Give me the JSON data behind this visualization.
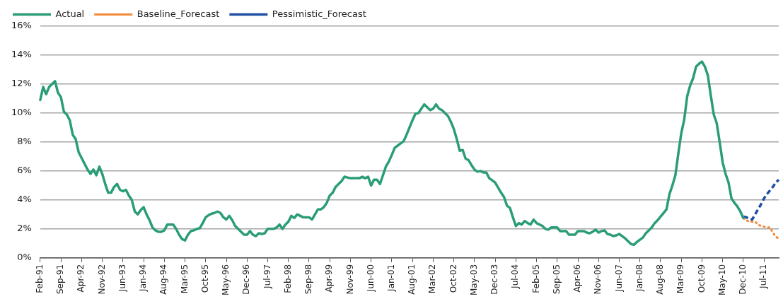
{
  "chart_data": {
    "type": "line",
    "categories": [
      "Feb-91",
      null,
      null,
      null,
      null,
      null,
      null,
      "Sep-91",
      null,
      null,
      null,
      null,
      null,
      null,
      "Apr-92",
      null,
      null,
      null,
      null,
      null,
      null,
      "Nov-92",
      null,
      null,
      null,
      null,
      null,
      null,
      "Jun-93",
      null,
      null,
      null,
      null,
      null,
      null,
      "Jan-94",
      null,
      null,
      null,
      null,
      null,
      null,
      "Aug-94",
      null,
      null,
      null,
      null,
      null,
      null,
      "Mar-95",
      null,
      null,
      null,
      null,
      null,
      null,
      "Oct-95",
      null,
      null,
      null,
      null,
      null,
      null,
      "May-96",
      null,
      null,
      null,
      null,
      null,
      null,
      "Dec-96",
      null,
      null,
      null,
      null,
      null,
      null,
      "Jul-97",
      null,
      null,
      null,
      null,
      null,
      null,
      "Feb-98",
      null,
      null,
      null,
      null,
      null,
      null,
      "Sep-98",
      null,
      null,
      null,
      null,
      null,
      null,
      "Apr-99",
      null,
      null,
      null,
      null,
      null,
      null,
      "Nov-99",
      null,
      null,
      null,
      null,
      null,
      null,
      "Jun-00",
      null,
      null,
      null,
      null,
      null,
      null,
      "Jan-01",
      null,
      null,
      null,
      null,
      null,
      null,
      "Aug-01",
      null,
      null,
      null,
      null,
      null,
      null,
      "Mar-02",
      null,
      null,
      null,
      null,
      null,
      null,
      "Oct-02",
      null,
      null,
      null,
      null,
      null,
      null,
      "May-03",
      null,
      null,
      null,
      null,
      null,
      null,
      "Dec-03",
      null,
      null,
      null,
      null,
      null,
      null,
      "Jul-04",
      null,
      null,
      null,
      null,
      null,
      null,
      "Feb-05",
      null,
      null,
      null,
      null,
      null,
      null,
      "Sep-05",
      null,
      null,
      null,
      null,
      null,
      null,
      "Apr-06",
      null,
      null,
      null,
      null,
      null,
      null,
      "Nov-06",
      null,
      null,
      null,
      null,
      null,
      null,
      "Jun-07",
      null,
      null,
      null,
      null,
      null,
      null,
      "Jan-08",
      null,
      null,
      null,
      null,
      null,
      null,
      "Aug-08",
      null,
      null,
      null,
      null,
      null,
      null,
      "Mar-09",
      null,
      null,
      null,
      null,
      null,
      null,
      "Oct-09",
      null,
      null,
      null,
      null,
      null,
      null,
      "May-10",
      null,
      null,
      null,
      null,
      null,
      null,
      "Dec-10",
      null,
      null,
      null,
      null,
      null,
      null,
      "Jul-11",
      null,
      null,
      null,
      null,
      null
    ],
    "series": [
      {
        "name": "Actual",
        "color": "#2a9d78",
        "line_style": "solid",
        "values": [
          10.9,
          11.8,
          11.3,
          11.8,
          12.0,
          12.2,
          11.4,
          11.1,
          10.1,
          9.9,
          9.5,
          8.5,
          8.2,
          7.3,
          6.9,
          6.5,
          6.1,
          5.8,
          6.1,
          5.7,
          6.3,
          5.8,
          5.1,
          4.5,
          4.5,
          4.9,
          5.1,
          4.7,
          4.6,
          4.7,
          4.3,
          4.0,
          3.2,
          3.0,
          3.3,
          3.5,
          3.0,
          2.6,
          2.1,
          1.9,
          1.8,
          1.8,
          1.9,
          2.3,
          2.3,
          2.3,
          2.0,
          1.6,
          1.3,
          1.2,
          1.6,
          1.85,
          1.9,
          2.0,
          2.05,
          2.4,
          2.8,
          2.95,
          3.05,
          3.1,
          3.2,
          3.1,
          2.8,
          2.65,
          2.9,
          2.6,
          2.2,
          2.0,
          1.8,
          1.6,
          1.6,
          1.85,
          1.6,
          1.5,
          1.7,
          1.65,
          1.7,
          2.0,
          2.0,
          2.0,
          2.1,
          2.3,
          2.0,
          2.3,
          2.5,
          2.9,
          2.75,
          3.0,
          2.9,
          2.8,
          2.8,
          2.8,
          2.65,
          3.0,
          3.35,
          3.35,
          3.5,
          3.8,
          4.3,
          4.5,
          4.9,
          5.1,
          5.3,
          5.6,
          5.55,
          5.5,
          5.5,
          5.5,
          5.5,
          5.6,
          5.5,
          5.6,
          5.0,
          5.4,
          5.4,
          5.1,
          5.7,
          6.3,
          6.65,
          7.1,
          7.6,
          7.75,
          7.9,
          8.05,
          8.5,
          9.0,
          9.5,
          9.95,
          10.0,
          10.3,
          10.6,
          10.4,
          10.2,
          10.3,
          10.6,
          10.3,
          10.2,
          10.0,
          9.8,
          9.4,
          8.9,
          8.2,
          7.4,
          7.45,
          6.85,
          6.75,
          6.4,
          6.1,
          5.95,
          6.0,
          5.9,
          5.9,
          5.5,
          5.35,
          5.2,
          4.85,
          4.5,
          4.2,
          3.6,
          3.45,
          2.8,
          2.2,
          2.4,
          2.3,
          2.55,
          2.4,
          2.3,
          2.65,
          2.4,
          2.3,
          2.2,
          2.0,
          1.95,
          2.1,
          2.1,
          2.1,
          1.85,
          1.85,
          1.85,
          1.6,
          1.6,
          1.6,
          1.85,
          1.85,
          1.85,
          1.75,
          1.7,
          1.8,
          1.95,
          1.75,
          1.85,
          1.9,
          1.65,
          1.6,
          1.5,
          1.55,
          1.65,
          1.5,
          1.35,
          1.15,
          0.95,
          0.9,
          1.1,
          1.25,
          1.4,
          1.7,
          1.9,
          2.1,
          2.4,
          2.6,
          2.85,
          3.1,
          3.35,
          4.4,
          5.0,
          5.7,
          7.2,
          8.6,
          9.55,
          11.15,
          11.9,
          12.4,
          13.2,
          13.4,
          13.55,
          13.2,
          12.6,
          11.2,
          9.9,
          9.3,
          8.0,
          6.6,
          5.8,
          5.2,
          4.1,
          3.8,
          3.55,
          3.2,
          2.75,
          null,
          null,
          null,
          null,
          null,
          null,
          null,
          null,
          null,
          null,
          null,
          null
        ]
      },
      {
        "name": "Baseline_Forecast",
        "color": "#f4893a",
        "line_style": "dotted",
        "values": [
          null,
          null,
          null,
          null,
          null,
          null,
          null,
          null,
          null,
          null,
          null,
          null,
          null,
          null,
          null,
          null,
          null,
          null,
          null,
          null,
          null,
          null,
          null,
          null,
          null,
          null,
          null,
          null,
          null,
          null,
          null,
          null,
          null,
          null,
          null,
          null,
          null,
          null,
          null,
          null,
          null,
          null,
          null,
          null,
          null,
          null,
          null,
          null,
          null,
          null,
          null,
          null,
          null,
          null,
          null,
          null,
          null,
          null,
          null,
          null,
          null,
          null,
          null,
          null,
          null,
          null,
          null,
          null,
          null,
          null,
          null,
          null,
          null,
          null,
          null,
          null,
          null,
          null,
          null,
          null,
          null,
          null,
          null,
          null,
          null,
          null,
          null,
          null,
          null,
          null,
          null,
          null,
          null,
          null,
          null,
          null,
          null,
          null,
          null,
          null,
          null,
          null,
          null,
          null,
          null,
          null,
          null,
          null,
          null,
          null,
          null,
          null,
          null,
          null,
          null,
          null,
          null,
          null,
          null,
          null,
          null,
          null,
          null,
          null,
          null,
          null,
          null,
          null,
          null,
          null,
          null,
          null,
          null,
          null,
          null,
          null,
          null,
          null,
          null,
          null,
          null,
          null,
          null,
          null,
          null,
          null,
          null,
          null,
          null,
          null,
          null,
          null,
          null,
          null,
          null,
          null,
          null,
          null,
          null,
          null,
          null,
          null,
          null,
          null,
          null,
          null,
          null,
          null,
          null,
          null,
          null,
          null,
          null,
          null,
          null,
          null,
          null,
          null,
          null,
          null,
          null,
          null,
          null,
          null,
          null,
          null,
          null,
          null,
          null,
          null,
          null,
          null,
          null,
          null,
          null,
          null,
          null,
          null,
          null,
          null,
          null,
          null,
          null,
          null,
          null,
          null,
          null,
          null,
          null,
          null,
          null,
          null,
          null,
          null,
          null,
          null,
          null,
          null,
          null,
          null,
          null,
          null,
          null,
          null,
          null,
          null,
          null,
          null,
          null,
          null,
          null,
          null,
          null,
          null,
          null,
          null,
          null,
          null,
          2.75,
          2.6,
          2.5,
          2.5,
          2.5,
          2.3,
          2.2,
          2.15,
          2.1,
          2.1,
          1.75,
          1.45,
          1.35
        ]
      },
      {
        "name": "Pessimistic_Forecast",
        "color": "#1f4ea3",
        "line_style": "dashed",
        "values": [
          null,
          null,
          null,
          null,
          null,
          null,
          null,
          null,
          null,
          null,
          null,
          null,
          null,
          null,
          null,
          null,
          null,
          null,
          null,
          null,
          null,
          null,
          null,
          null,
          null,
          null,
          null,
          null,
          null,
          null,
          null,
          null,
          null,
          null,
          null,
          null,
          null,
          null,
          null,
          null,
          null,
          null,
          null,
          null,
          null,
          null,
          null,
          null,
          null,
          null,
          null,
          null,
          null,
          null,
          null,
          null,
          null,
          null,
          null,
          null,
          null,
          null,
          null,
          null,
          null,
          null,
          null,
          null,
          null,
          null,
          null,
          null,
          null,
          null,
          null,
          null,
          null,
          null,
          null,
          null,
          null,
          null,
          null,
          null,
          null,
          null,
          null,
          null,
          null,
          null,
          null,
          null,
          null,
          null,
          null,
          null,
          null,
          null,
          null,
          null,
          null,
          null,
          null,
          null,
          null,
          null,
          null,
          null,
          null,
          null,
          null,
          null,
          null,
          null,
          null,
          null,
          null,
          null,
          null,
          null,
          null,
          null,
          null,
          null,
          null,
          null,
          null,
          null,
          null,
          null,
          null,
          null,
          null,
          null,
          null,
          null,
          null,
          null,
          null,
          null,
          null,
          null,
          null,
          null,
          null,
          null,
          null,
          null,
          null,
          null,
          null,
          null,
          null,
          null,
          null,
          null,
          null,
          null,
          null,
          null,
          null,
          null,
          null,
          null,
          null,
          null,
          null,
          null,
          null,
          null,
          null,
          null,
          null,
          null,
          null,
          null,
          null,
          null,
          null,
          null,
          null,
          null,
          null,
          null,
          null,
          null,
          null,
          null,
          null,
          null,
          null,
          null,
          null,
          null,
          null,
          null,
          null,
          null,
          null,
          null,
          null,
          null,
          null,
          null,
          null,
          null,
          null,
          null,
          null,
          null,
          null,
          null,
          null,
          null,
          null,
          null,
          null,
          null,
          null,
          null,
          null,
          null,
          null,
          null,
          null,
          null,
          null,
          null,
          null,
          null,
          null,
          null,
          null,
          null,
          null,
          null,
          null,
          null,
          2.85,
          2.8,
          2.7,
          2.65,
          3.0,
          3.35,
          3.7,
          4.1,
          4.4,
          4.65,
          4.9,
          5.2,
          5.4
        ]
      }
    ],
    "ylim": [
      0,
      16
    ],
    "yticks": [
      {
        "value": 0,
        "label": "0%"
      },
      {
        "value": 2,
        "label": "2%"
      },
      {
        "value": 4,
        "label": "4%"
      },
      {
        "value": 6,
        "label": "6%"
      },
      {
        "value": 8,
        "label": "8%"
      },
      {
        "value": 10,
        "label": "10%"
      },
      {
        "value": 12,
        "label": "12%"
      },
      {
        "value": 14,
        "label": "14%"
      },
      {
        "value": 16,
        "label": "16%"
      }
    ],
    "grid": "y",
    "legend": "top left",
    "marker": "none"
  }
}
